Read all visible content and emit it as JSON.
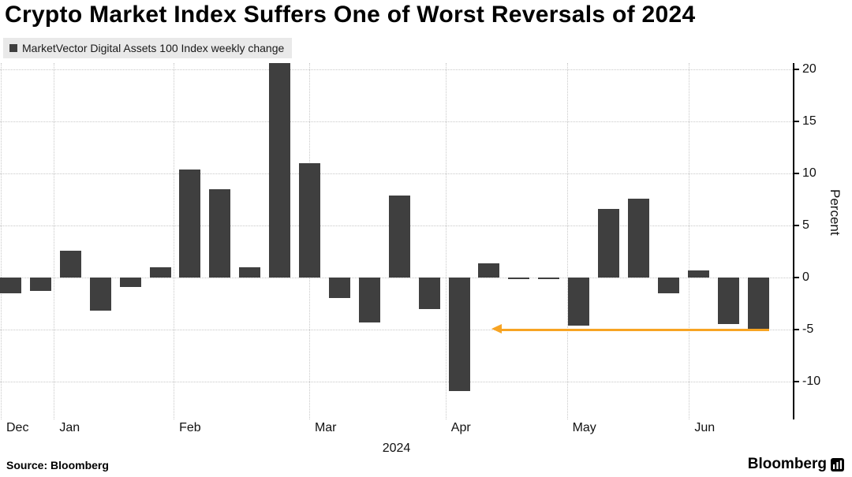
{
  "title": "Crypto Market Index Suffers One of Worst Reversals of 2024",
  "legend": {
    "label": "MarketVector Digital Assets 100 Index weekly change",
    "marker_color": "#3f3f3f"
  },
  "footer": {
    "source": "Source: Bloomberg",
    "brand": "Bloomberg"
  },
  "chart_data": {
    "type": "bar",
    "title": "Crypto Market Index Suffers One of Worst Reversals of 2024",
    "series_name": "MarketVector Digital Assets 100 Index weekly change",
    "ylabel": "Percent",
    "xlabel": "2024",
    "ylim": [
      -12.5,
      22.5
    ],
    "yticks": [
      20,
      15,
      10,
      5,
      0,
      -5,
      -10
    ],
    "grid": "dotted",
    "legend_position": "top-left",
    "bar_color": "#3f3f3f",
    "values": [
      -1.5,
      -1.3,
      2.6,
      -3.2,
      -0.9,
      1.0,
      10.4,
      8.5,
      1.0,
      20.6,
      11.0,
      -2.0,
      -4.3,
      7.9,
      -3.0,
      -10.9,
      1.4,
      -0.15,
      -0.15,
      -4.6,
      6.6,
      7.6,
      -1.5,
      0.7,
      -4.5,
      -5.0
    ],
    "months": [
      {
        "label": "Dec",
        "x": 0.001
      },
      {
        "label": "Jan",
        "x": 0.068
      },
      {
        "label": "Feb",
        "x": 0.219
      },
      {
        "label": "Mar",
        "x": 0.39
      },
      {
        "label": "Apr",
        "x": 0.562
      },
      {
        "label": "May",
        "x": 0.715
      },
      {
        "label": "Jun",
        "x": 0.869
      }
    ],
    "annotation": {
      "type": "arrow-left",
      "y": -5,
      "x_from": 0.62,
      "x_to": 0.97,
      "color": "#f7a423"
    }
  }
}
